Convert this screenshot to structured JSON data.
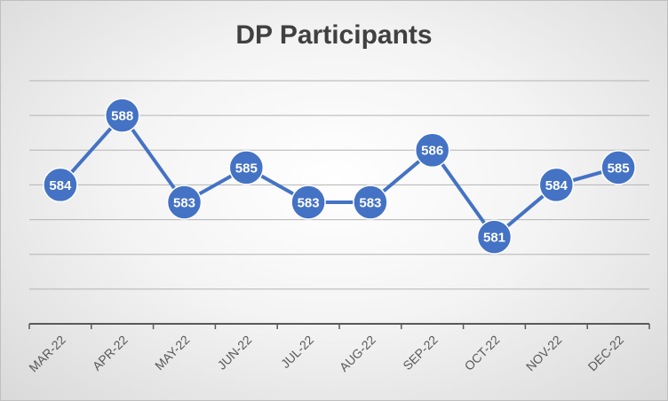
{
  "chart_data": {
    "type": "line",
    "title": "DP Participants",
    "xlabel": "",
    "ylabel": "",
    "categories": [
      "MAR-22",
      "APR-22",
      "MAY-22",
      "JUN-22",
      "JUL-22",
      "AUG-22",
      "SEP-22",
      "OCT-22",
      "NOV-22",
      "DEC-22"
    ],
    "series": [
      {
        "values": [
          584,
          588,
          583,
          585,
          583,
          583,
          586,
          581,
          584,
          585
        ]
      }
    ],
    "ylim": [
      576,
      590
    ],
    "y_grid_step": 2,
    "grid": true,
    "legend": "none",
    "data_labels": true,
    "series_color": "#4472C4"
  }
}
